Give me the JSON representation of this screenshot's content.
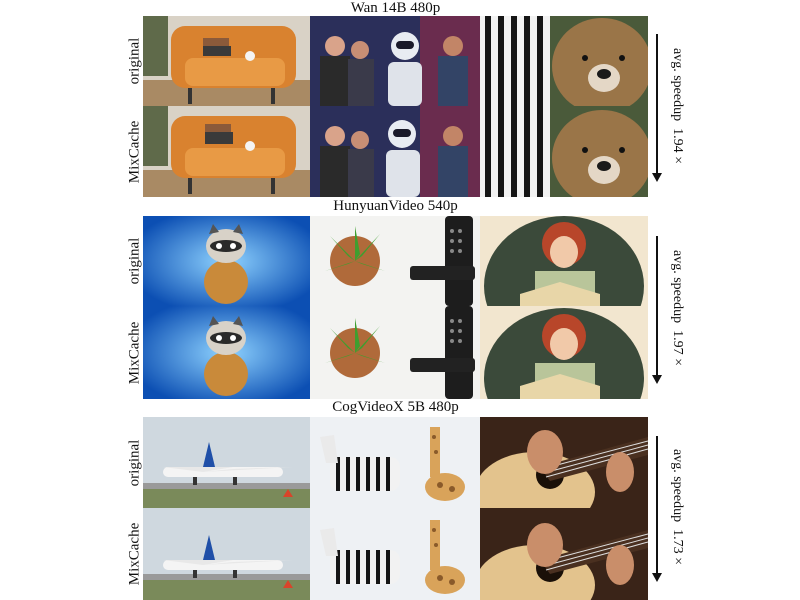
{
  "sections": [
    {
      "title": "Wan 14B 480p",
      "speedup_label": "avg. speedup",
      "speedup_value": "1.94 ×"
    },
    {
      "title": "HunyuanVideo 540p",
      "speedup_label": "avg. speedup",
      "speedup_value": "1.97 ×"
    },
    {
      "title": "CogVideoX 5B 480p",
      "speedup_label": "avg. speedup",
      "speedup_value": "1.73 ×"
    }
  ],
  "row_labels": {
    "original": "original",
    "method": "MixCache"
  },
  "panels": {
    "armchair": "armchair-image",
    "robot_party": "robot-party-image",
    "zebra_bear": "zebra-bear-image",
    "raccoon": "raccoon-image",
    "plant_remote": "plant-remote-image",
    "woman_reading": "woman-reading-image",
    "airplane": "airplane-image",
    "zebra_giraffe": "zebra-giraffe-image",
    "guitar": "guitar-image"
  }
}
